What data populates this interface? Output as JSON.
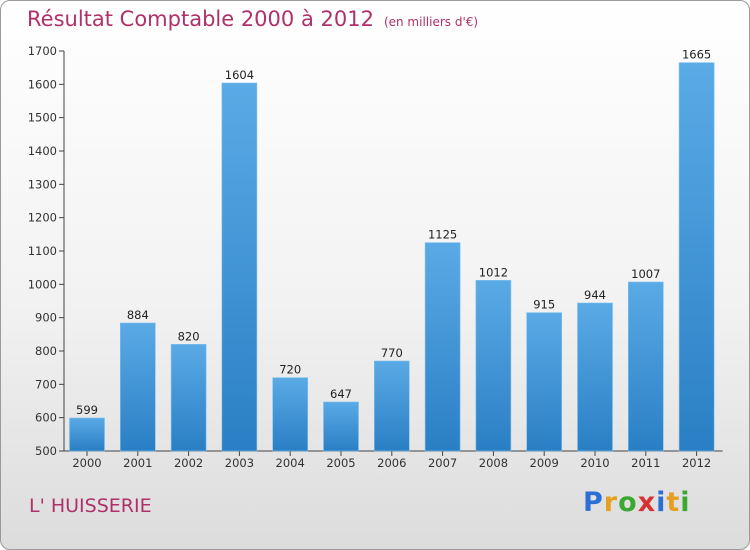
{
  "title": "Résultat Comptable 2000 à 2012",
  "subtitle": "(en milliers d'€)",
  "location": "L' HUISSERIE",
  "brand": {
    "letters": [
      "P",
      "r",
      "o",
      "x",
      "i",
      "t",
      "i"
    ],
    "colors": [
      "#2b6fd6",
      "#e6a020",
      "#3aa832",
      "#d93030",
      "#2b6fd6",
      "#e6a020",
      "#3aa832"
    ]
  },
  "colors": {
    "bar_light": "#5aaae6",
    "bar_dark": "#2a7fc4",
    "title": "#b0306a"
  },
  "chart_data": {
    "type": "bar",
    "title": "Résultat Comptable 2000 à 2012",
    "subtitle": "(en milliers d'€)",
    "xlabel": "",
    "ylabel": "",
    "categories": [
      "2000",
      "2001",
      "2002",
      "2003",
      "2004",
      "2005",
      "2006",
      "2007",
      "2008",
      "2009",
      "2010",
      "2011",
      "2012"
    ],
    "values": [
      599,
      884,
      820,
      1604,
      720,
      647,
      770,
      1125,
      1012,
      915,
      944,
      1007,
      1665
    ],
    "ylim": [
      500,
      1700
    ],
    "yticks": [
      500,
      600,
      700,
      800,
      900,
      1000,
      1100,
      1200,
      1300,
      1400,
      1500,
      1600,
      1700
    ],
    "grid": false,
    "legend": "none"
  }
}
